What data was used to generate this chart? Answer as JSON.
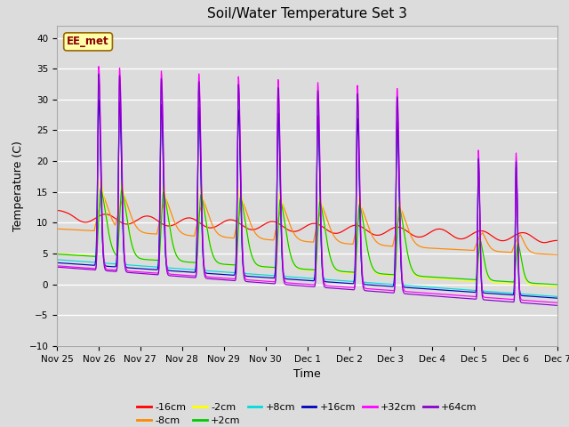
{
  "title": "Soil/Water Temperature Set 3",
  "xlabel": "Time",
  "ylabel": "Temperature (C)",
  "ylim": [
    -10,
    42
  ],
  "yticks": [
    -10,
    -5,
    0,
    5,
    10,
    15,
    20,
    25,
    30,
    35,
    40
  ],
  "background_color": "#dcdcdc",
  "series": [
    {
      "label": "-16cm",
      "color": "#ff0000"
    },
    {
      "label": "-8cm",
      "color": "#ff8800"
    },
    {
      "label": "-2cm",
      "color": "#ffff00"
    },
    {
      "label": "+2cm",
      "color": "#00cc00"
    },
    {
      "label": "+8cm",
      "color": "#00dddd"
    },
    {
      "label": "+16cm",
      "color": "#0000bb"
    },
    {
      "label": "+32cm",
      "color": "#ff00ff"
    },
    {
      "label": "+64cm",
      "color": "#8800cc"
    }
  ],
  "annotation_text": "EE_met",
  "xtick_labels": [
    "Nov 25",
    "Nov 26",
    "Nov 27",
    "Nov 28",
    "Nov 29",
    "Nov 30",
    "Dec 1",
    "Dec 2",
    "Dec 3",
    "Dec 4",
    "Dec 5",
    "Dec 6",
    "Dec 7"
  ],
  "xtick_positions": [
    0,
    1,
    2,
    3,
    4,
    5,
    6,
    7,
    8,
    9,
    10,
    11,
    12
  ]
}
